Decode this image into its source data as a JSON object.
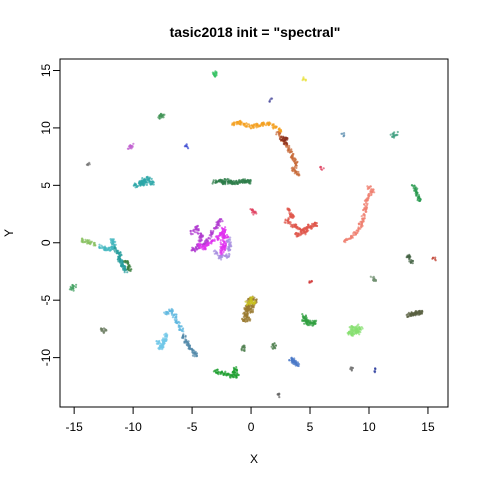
{
  "chart_data": {
    "type": "scatter",
    "title": "tasic2018 init = \"spectral\"",
    "xlabel": "X",
    "ylabel": "Y",
    "xlim": [
      -16.2,
      16.7
    ],
    "ylim": [
      -14.3,
      16.0
    ],
    "x_ticks": [
      -15,
      -10,
      -5,
      0,
      5,
      10,
      15
    ],
    "x_tick_labels": [
      "-15",
      "-10",
      "-5",
      "0",
      "5",
      "10",
      "15"
    ],
    "y_ticks": [
      -10,
      -5,
      0,
      5,
      10,
      15
    ],
    "y_tick_labels": [
      "-10",
      "-5",
      "0",
      "5",
      "10",
      "15"
    ],
    "grid": false,
    "legend": "none",
    "clusters": [
      {
        "color": "#f4a020",
        "points": [
          [
            -1.5,
            10.4
          ],
          [
            -1.0,
            10.5
          ],
          [
            -0.5,
            10.3
          ],
          [
            0.0,
            10.1
          ],
          [
            0.5,
            10.2
          ],
          [
            1.0,
            10.3
          ],
          [
            1.5,
            10.4
          ],
          [
            2.0,
            10.1
          ],
          [
            2.5,
            9.8
          ]
        ]
      },
      {
        "color": "#c86a38",
        "points": [
          [
            2.3,
            9.5
          ],
          [
            2.7,
            9.0
          ],
          [
            3.0,
            8.5
          ],
          [
            3.3,
            8.0
          ],
          [
            3.6,
            7.4
          ],
          [
            3.8,
            6.9
          ],
          [
            3.6,
            6.4
          ],
          [
            4.0,
            6.0
          ]
        ]
      },
      {
        "color": "#8a3020",
        "points": [
          [
            2.6,
            9.1
          ],
          [
            3.0,
            9.1
          ],
          [
            2.9,
            8.7
          ]
        ]
      },
      {
        "color": "#e0564a",
        "points": [
          [
            3.2,
            2.9
          ],
          [
            3.5,
            2.3
          ],
          [
            3.0,
            1.8
          ],
          [
            3.8,
            1.4
          ],
          [
            4.3,
            1.2
          ],
          [
            5.0,
            1.4
          ],
          [
            5.5,
            1.6
          ],
          [
            3.9,
            0.7
          ],
          [
            4.6,
            0.9
          ]
        ]
      },
      {
        "color": "#f08070",
        "points": [
          [
            10.0,
            4.8
          ],
          [
            10.3,
            4.5
          ],
          [
            9.8,
            3.8
          ],
          [
            9.7,
            3.0
          ],
          [
            9.5,
            2.2
          ],
          [
            9.3,
            1.5
          ],
          [
            9.0,
            0.9
          ],
          [
            8.5,
            0.5
          ],
          [
            8.0,
            0.1
          ]
        ]
      },
      {
        "color": "#b03cd0",
        "points": [
          [
            -5.0,
            0.9
          ],
          [
            -4.6,
            1.3
          ],
          [
            -4.2,
            0.6
          ],
          [
            -4.5,
            -0.3
          ],
          [
            -4.9,
            -0.6
          ],
          [
            -3.8,
            0.0
          ],
          [
            -3.3,
            0.9
          ],
          [
            -2.8,
            1.6
          ],
          [
            -2.5,
            2.0
          ]
        ]
      },
      {
        "color": "#e030f0",
        "points": [
          [
            -4.3,
            -0.2
          ],
          [
            -4.0,
            -0.5
          ],
          [
            -3.7,
            -0.1
          ],
          [
            -2.9,
            0.4
          ],
          [
            -2.5,
            0.8
          ],
          [
            -2.1,
            0.5
          ],
          [
            -2.3,
            -0.4
          ],
          [
            -2.6,
            -1.0
          ],
          [
            -2.3,
            1.2
          ]
        ]
      },
      {
        "color": "#a890e0",
        "points": [
          [
            -3.0,
            -0.8
          ],
          [
            -2.6,
            -1.3
          ],
          [
            -2.0,
            -1.1
          ],
          [
            -1.8,
            -0.3
          ],
          [
            -1.9,
            0.3
          ]
        ]
      },
      {
        "color": "#2a9e9e",
        "points": [
          [
            -11.7,
            -0.2
          ],
          [
            -11.5,
            -0.6
          ],
          [
            -11.2,
            -1.0
          ],
          [
            -11.0,
            -1.6
          ],
          [
            -10.8,
            -2.1
          ],
          [
            -10.6,
            -2.4
          ],
          [
            -11.3,
            -1.3
          ]
        ]
      },
      {
        "color": "#3a8040",
        "points": [
          [
            -10.6,
            -1.6
          ],
          [
            -10.4,
            -2.0
          ],
          [
            -10.3,
            -2.3
          ]
        ]
      },
      {
        "color": "#44b8c0",
        "points": [
          [
            -12.7,
            -0.3
          ],
          [
            -12.3,
            -0.5
          ],
          [
            -11.9,
            -0.6
          ],
          [
            -11.6,
            0.0
          ],
          [
            -11.8,
            0.2
          ]
        ]
      },
      {
        "color": "#88c060",
        "points": [
          [
            -14.3,
            0.2
          ],
          [
            -13.8,
            0.1
          ],
          [
            -13.3,
            -0.1
          ]
        ]
      },
      {
        "color": "#2ca6a8",
        "points": [
          [
            -9.8,
            5.0
          ],
          [
            -9.3,
            5.3
          ],
          [
            -9.1,
            5.5
          ],
          [
            -8.7,
            5.6
          ],
          [
            -8.4,
            5.2
          ],
          [
            -9.5,
            5.1
          ],
          [
            -8.9,
            5.4
          ]
        ]
      },
      {
        "color": "#2e7d4a",
        "points": [
          [
            -3.1,
            5.3
          ],
          [
            -2.6,
            5.4
          ],
          [
            -2.1,
            5.4
          ],
          [
            -1.6,
            5.3
          ],
          [
            -1.1,
            5.3
          ],
          [
            -0.6,
            5.4
          ],
          [
            -0.1,
            5.3
          ],
          [
            -2.4,
            5.2
          ]
        ]
      },
      {
        "color": "#2a9a50",
        "points": [
          [
            13.8,
            4.9
          ],
          [
            14.0,
            4.5
          ],
          [
            14.2,
            4.0
          ],
          [
            14.3,
            3.7
          ]
        ]
      },
      {
        "color": "#40a080",
        "points": [
          [
            12.0,
            9.3
          ],
          [
            12.3,
            9.5
          ]
        ]
      },
      {
        "color": "#3a9050",
        "points": [
          [
            -7.7,
            10.9
          ],
          [
            -7.5,
            11.1
          ]
        ]
      },
      {
        "color": "#30c060",
        "points": [
          [
            -3.1,
            14.8
          ],
          [
            -3.0,
            14.6
          ]
        ]
      },
      {
        "color": "#e8e030",
        "points": [
          [
            4.5,
            14.3
          ]
        ]
      },
      {
        "color": "#9a7a30",
        "points": [
          [
            -0.2,
            -5.0
          ],
          [
            0.1,
            -4.8
          ],
          [
            0.4,
            -5.1
          ],
          [
            0.2,
            -5.5
          ],
          [
            -0.3,
            -5.6
          ],
          [
            0.0,
            -5.9
          ],
          [
            -0.5,
            -6.2
          ],
          [
            -0.2,
            -6.6
          ],
          [
            -0.6,
            -6.8
          ],
          [
            -0.4,
            -6.3
          ],
          [
            -0.1,
            -5.3
          ],
          [
            -0.4,
            -5.8
          ]
        ]
      },
      {
        "color": "#c8c020",
        "points": [
          [
            0.0,
            -4.9
          ],
          [
            0.2,
            -5.2
          ],
          [
            -0.3,
            -5.3
          ]
        ]
      },
      {
        "color": "#60b8e0",
        "points": [
          [
            -7.2,
            -6.1
          ],
          [
            -6.8,
            -5.9
          ],
          [
            -6.5,
            -6.4
          ],
          [
            -6.2,
            -7.1
          ],
          [
            -5.9,
            -7.6
          ]
        ]
      },
      {
        "color": "#5088a8",
        "points": [
          [
            -5.7,
            -8.1
          ],
          [
            -5.5,
            -8.6
          ],
          [
            -5.2,
            -9.1
          ],
          [
            -4.9,
            -9.5
          ],
          [
            -4.7,
            -9.8
          ]
        ]
      },
      {
        "color": "#70c8e8",
        "points": [
          [
            -7.9,
            -8.7
          ],
          [
            -7.5,
            -9.0
          ],
          [
            -7.3,
            -8.5
          ],
          [
            -7.7,
            -9.2
          ],
          [
            -7.2,
            -8.0
          ]
        ]
      },
      {
        "color": "#30a040",
        "points": [
          [
            4.5,
            -6.3
          ],
          [
            4.6,
            -6.7
          ],
          [
            4.8,
            -7.0
          ],
          [
            5.2,
            -7.1
          ],
          [
            5.4,
            -6.9
          ],
          [
            4.5,
            -6.9
          ]
        ]
      },
      {
        "color": "#88e070",
        "points": [
          [
            8.5,
            -7.4
          ],
          [
            8.8,
            -7.6
          ],
          [
            9.0,
            -7.8
          ],
          [
            9.3,
            -7.5
          ],
          [
            8.7,
            -8.0
          ],
          [
            8.3,
            -7.9
          ],
          [
            9.1,
            -7.3
          ]
        ]
      },
      {
        "color": "#586040",
        "points": [
          [
            13.3,
            -6.3
          ],
          [
            13.8,
            -6.2
          ],
          [
            14.1,
            -6.1
          ],
          [
            14.4,
            -6.0
          ],
          [
            13.6,
            -6.2
          ]
        ]
      },
      {
        "color": "#20a030",
        "points": [
          [
            -3.0,
            -11.2
          ],
          [
            -2.6,
            -11.3
          ],
          [
            -2.1,
            -11.4
          ],
          [
            -1.6,
            -11.6
          ],
          [
            -1.2,
            -11.6
          ],
          [
            -1.3,
            -11.0
          ],
          [
            -1.4,
            -11.4
          ]
        ]
      },
      {
        "color": "#4878c8",
        "points": [
          [
            3.5,
            -10.2
          ],
          [
            3.7,
            -10.4
          ],
          [
            3.9,
            -10.6
          ],
          [
            3.4,
            -10.1
          ]
        ]
      },
      {
        "color": "#40a060",
        "points": [
          [
            -15.2,
            -4.0
          ],
          [
            -15.0,
            -3.8
          ]
        ]
      },
      {
        "color": "#6a7a60",
        "points": [
          [
            -12.6,
            -7.6
          ],
          [
            -12.4,
            -7.7
          ]
        ]
      },
      {
        "color": "#406040",
        "points": [
          [
            13.3,
            -1.2
          ],
          [
            13.6,
            -1.6
          ]
        ]
      },
      {
        "color": "#c04030",
        "points": [
          [
            15.5,
            -1.4
          ]
        ]
      },
      {
        "color": "#709070",
        "points": [
          [
            10.3,
            -3.1
          ],
          [
            10.5,
            -3.3
          ]
        ]
      },
      {
        "color": "#6090b0",
        "points": [
          [
            7.8,
            9.4
          ]
        ]
      },
      {
        "color": "#c060d0",
        "points": [
          [
            -10.3,
            8.3
          ],
          [
            -10.1,
            8.5
          ]
        ]
      },
      {
        "color": "#707070",
        "points": [
          [
            -13.8,
            6.9
          ]
        ]
      },
      {
        "color": "#3040d0",
        "points": [
          [
            -5.5,
            8.4
          ]
        ]
      },
      {
        "color": "#5050a0",
        "points": [
          [
            1.7,
            12.4
          ]
        ]
      },
      {
        "color": "#e04060",
        "points": [
          [
            6.0,
            6.5
          ],
          [
            0.1,
            2.8
          ],
          [
            0.3,
            2.6
          ]
        ]
      },
      {
        "color": "#d03030",
        "points": [
          [
            5.1,
            -3.5
          ]
        ]
      },
      {
        "color": "#606060",
        "points": [
          [
            2.4,
            -13.3
          ],
          [
            8.5,
            -11.0
          ]
        ]
      },
      {
        "color": "#3040a0",
        "points": [
          [
            10.6,
            -11.1
          ]
        ]
      },
      {
        "color": "#508050",
        "points": [
          [
            -0.7,
            -9.3
          ],
          [
            -0.6,
            -9.1
          ],
          [
            2.0,
            -8.9
          ],
          [
            1.9,
            -9.1
          ]
        ]
      }
    ]
  }
}
